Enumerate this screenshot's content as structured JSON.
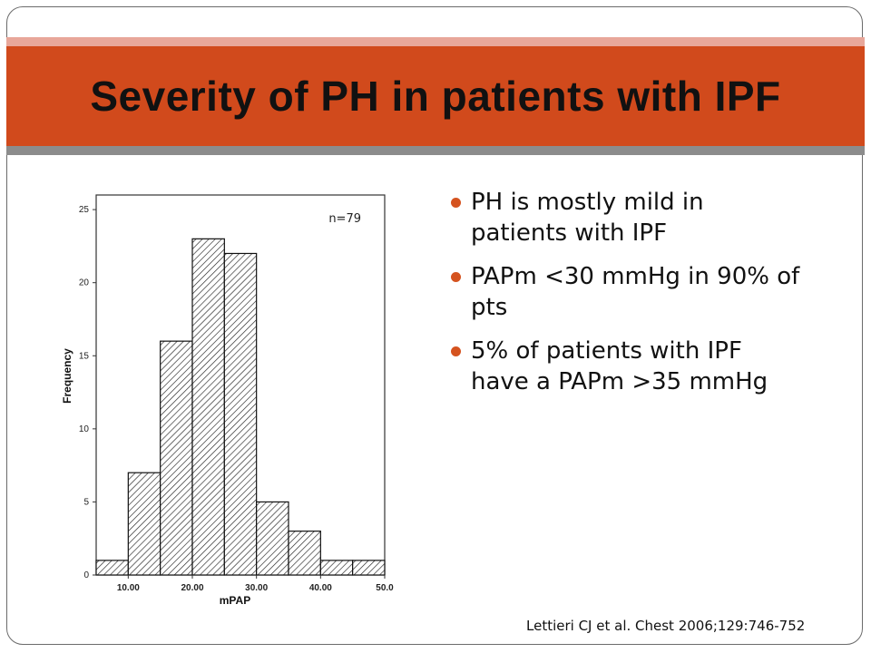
{
  "slide": {
    "title": "Severity of PH in patients with IPF",
    "bullets": [
      "PH is mostly mild in patients with IPF",
      "PAPm <30 mmHg in 90% of pts",
      "5% of patients with IPF have a PAPm >35 mmHg"
    ],
    "citation": "Lettieri  CJ et al. Chest 2006;129:746-752"
  },
  "colors": {
    "title_bar": "#d14a1c",
    "title_band_light": "#e8a79a",
    "title_band_gray": "#8c8c8c",
    "bullet_dot": "#d5531f"
  },
  "chart_data": {
    "type": "bar",
    "xlabel": "mPAP",
    "ylabel": "Frequency",
    "annotation": "n=79",
    "x_ticks": [
      "10.00",
      "20.00",
      "30.00",
      "40.00",
      "50.0"
    ],
    "y_ticks": [
      "0",
      "5",
      "10",
      "15",
      "20",
      "25"
    ],
    "xlim": [
      5,
      50
    ],
    "ylim": [
      0,
      26
    ],
    "bins": [
      {
        "start": 5,
        "end": 10,
        "value": 1
      },
      {
        "start": 10,
        "end": 15,
        "value": 7
      },
      {
        "start": 15,
        "end": 20,
        "value": 16
      },
      {
        "start": 20,
        "end": 25,
        "value": 23
      },
      {
        "start": 25,
        "end": 30,
        "value": 22
      },
      {
        "start": 30,
        "end": 35,
        "value": 5
      },
      {
        "start": 35,
        "end": 40,
        "value": 3
      },
      {
        "start": 40,
        "end": 45,
        "value": 1
      },
      {
        "start": 45,
        "end": 50,
        "value": 1
      }
    ],
    "fill": "diagonal hatch",
    "grid": false
  }
}
